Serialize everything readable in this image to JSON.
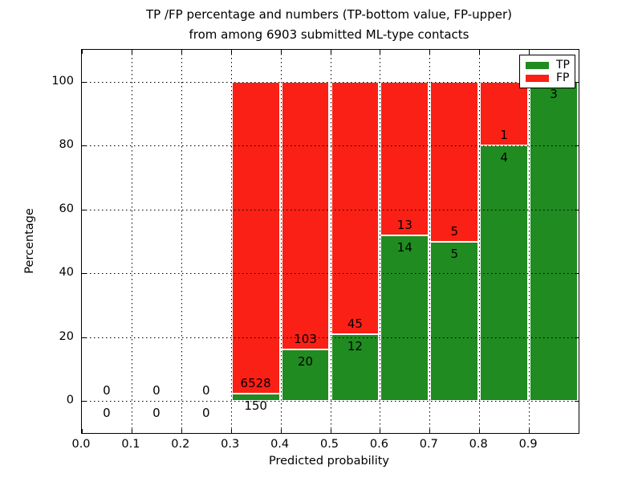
{
  "title": {
    "line1": "TP /FP percentage and numbers (TP-bottom value, FP-upper)",
    "line2": "from among 6903 submitted ML-type contacts"
  },
  "colors": {
    "tp_green": "#208b20",
    "fp_red": "#fb2015",
    "grid": "#000000",
    "background": "#ffffff",
    "text": "#000000"
  },
  "legend": {
    "position": "upper-right",
    "items": [
      {
        "label": "TP",
        "color": "#208b20"
      },
      {
        "label": "FP",
        "color": "#fb2015"
      }
    ]
  },
  "chart_data": {
    "type": "bar",
    "stacked": true,
    "title": "TP /FP percentage and numbers (TP-bottom value, FP-upper) from among 6903 submitted ML-type contacts",
    "xlabel": "Predicted probability",
    "ylabel": "Percentage",
    "xlim": [
      0.0,
      1.0
    ],
    "ylim": [
      -10,
      110
    ],
    "grid": true,
    "grid_style": "dotted",
    "total_contacts": 6903,
    "bin_width": 0.1,
    "bin_starts": [
      0.0,
      0.1,
      0.2,
      0.3,
      0.4,
      0.5,
      0.6,
      0.7,
      0.8,
      0.9
    ],
    "x_tick_labels": [
      "0.0",
      "0.1",
      "0.2",
      "0.3",
      "0.4",
      "0.5",
      "0.6",
      "0.7",
      "0.8",
      "0.9"
    ],
    "y_tick_labels": [
      "0",
      "20",
      "40",
      "60",
      "80",
      "100"
    ],
    "series": [
      {
        "name": "TP",
        "color": "#208b20",
        "counts": [
          0,
          0,
          0,
          150,
          20,
          12,
          14,
          5,
          4,
          3
        ]
      },
      {
        "name": "FP",
        "color": "#fb2015",
        "counts": [
          0,
          0,
          0,
          6528,
          103,
          45,
          13,
          5,
          1,
          0
        ]
      }
    ],
    "tp_percent_by_bin": [
      null,
      null,
      null,
      2.2,
      16.3,
      21.1,
      51.9,
      50.0,
      80.0,
      100.0
    ]
  }
}
